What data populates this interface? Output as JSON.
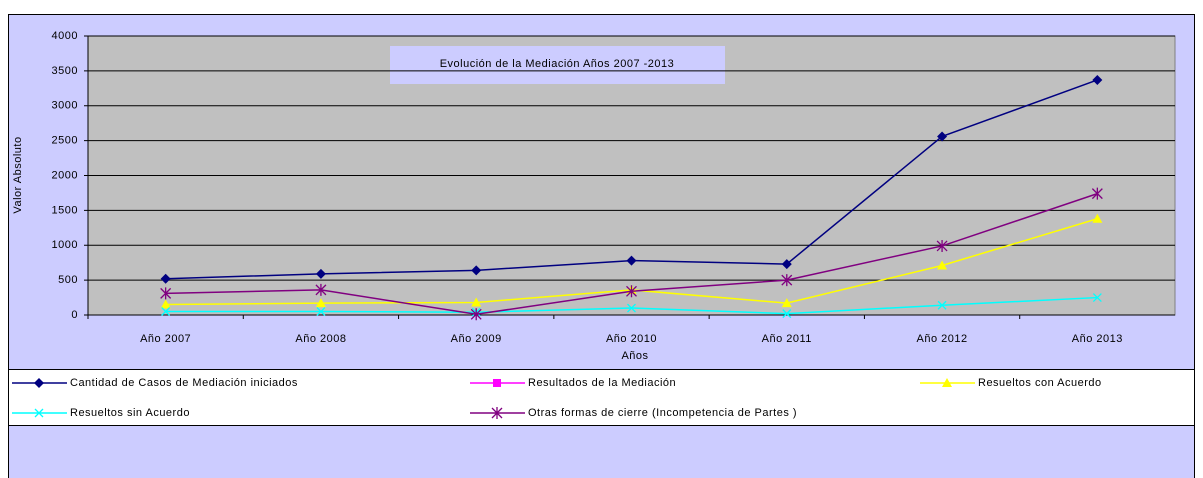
{
  "chart_data": {
    "type": "line",
    "title": "Evolución de la Mediación Años 2007 -2013",
    "x_label": "Años",
    "y_label": "Valor Absoluto",
    "categories": [
      "Año 2007",
      "Año 2008",
      "Año 2009",
      "Año 2010",
      "Año 2011",
      "Año 2012",
      "Año 2013"
    ],
    "ylim": [
      0,
      4000
    ],
    "yticks": [
      0,
      500,
      1000,
      1500,
      2000,
      2500,
      3000,
      3500,
      4000
    ],
    "grid": true,
    "series": [
      {
        "name": "Cantidad de Casos de Mediación iniciados",
        "color": "#000080",
        "marker": "diamond",
        "values": [
          520,
          590,
          640,
          780,
          730,
          2560,
          3370
        ]
      },
      {
        "name": "Resultados de la Mediación",
        "color": "#ff00ff",
        "marker": "square",
        "values": [
          null,
          null,
          null,
          null,
          null,
          null,
          null
        ]
      },
      {
        "name": "Resueltos con Acuerdo",
        "color": "#ffff00",
        "marker": "triangle",
        "values": [
          150,
          170,
          180,
          360,
          170,
          710,
          1380
        ]
      },
      {
        "name": "Resueltos sin Acuerdo",
        "color": "#00ffff",
        "marker": "x",
        "values": [
          50,
          50,
          40,
          100,
          20,
          140,
          250
        ]
      },
      {
        "name": "Otras formas de cierre  (Incompetencia de Partes )",
        "color": "#800080",
        "marker": "asterisk",
        "values": [
          310,
          360,
          10,
          340,
          500,
          990,
          1740
        ]
      }
    ]
  }
}
